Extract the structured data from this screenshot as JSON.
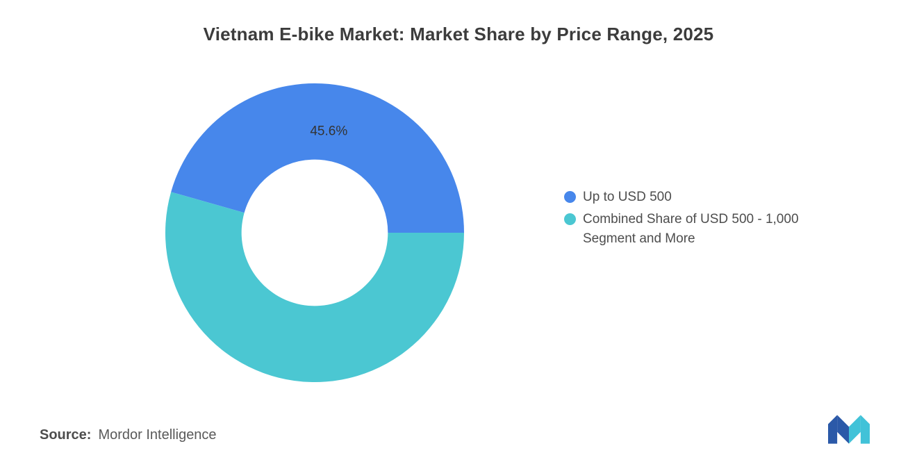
{
  "header": {
    "title": "Vietnam E-bike Market: Market Share by Price Range, 2025"
  },
  "chart_data": {
    "type": "pie",
    "subtype": "donut",
    "title": "Vietnam E-bike Market: Market Share by Price Range, 2025",
    "series": [
      {
        "name": "Up to USD 500",
        "value": 45.6,
        "label": "45.6%",
        "color": "#4787EB"
      },
      {
        "name": "Combined Share of USD 500 - 1,000 Segment and More",
        "value": 54.4,
        "label": "",
        "color": "#4BC7D2"
      }
    ],
    "legend_position": "right",
    "grid": false,
    "donut_hole_ratio": 0.49,
    "start_angle_deg": -164.16,
    "label_color": "#333333",
    "label_font_size": 19
  },
  "source": {
    "label": "Source:",
    "value": "Mordor Intelligence"
  },
  "logo": {
    "name": "mordor-intelligence-logo",
    "colors": {
      "blue": "#2B59A8",
      "teal": "#41C2D8"
    }
  }
}
